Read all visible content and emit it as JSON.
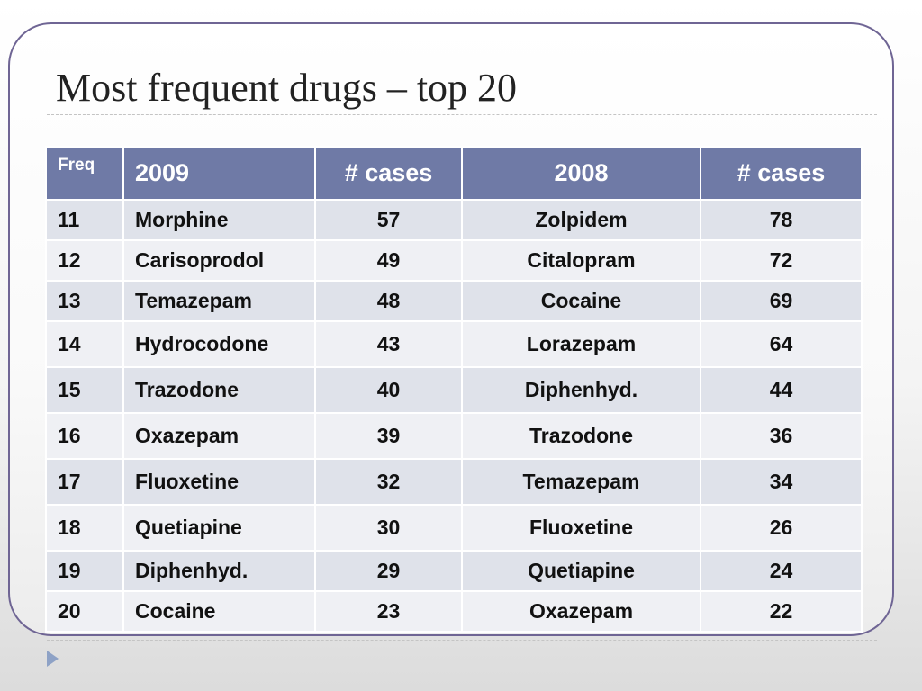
{
  "slide": {
    "title": "Most frequent drugs – top 20"
  },
  "table": {
    "headers": {
      "freq": "Freq",
      "year_2009": "2009",
      "cases_2009": "# cases",
      "year_2008": "2008",
      "cases_2008": "# cases"
    },
    "rows": [
      {
        "freq": "11",
        "drug_2009": "Morphine",
        "cases_2009": "57",
        "drug_2008": "Zolpidem",
        "cases_2008": "78"
      },
      {
        "freq": "12",
        "drug_2009": "Carisoprodol",
        "cases_2009": "49",
        "drug_2008": "Citalopram",
        "cases_2008": "72"
      },
      {
        "freq": "13",
        "drug_2009": "Temazepam",
        "cases_2009": "48",
        "drug_2008": "Cocaine",
        "cases_2008": "69"
      },
      {
        "freq": "14",
        "drug_2009": "Hydrocodone",
        "cases_2009": "43",
        "drug_2008": "Lorazepam",
        "cases_2008": "64"
      },
      {
        "freq": "15",
        "drug_2009": "Trazodone",
        "cases_2009": "40",
        "drug_2008": "Diphenhyd.",
        "cases_2008": "44"
      },
      {
        "freq": "16",
        "drug_2009": "Oxazepam",
        "cases_2009": "39",
        "drug_2008": "Trazodone",
        "cases_2008": "36"
      },
      {
        "freq": "17",
        "drug_2009": "Fluoxetine",
        "cases_2009": "32",
        "drug_2008": "Temazepam",
        "cases_2008": "34"
      },
      {
        "freq": "18",
        "drug_2009": "Quetiapine",
        "cases_2009": "30",
        "drug_2008": "Fluoxetine",
        "cases_2008": "26"
      },
      {
        "freq": "19",
        "drug_2009": "Diphenhyd.",
        "cases_2009": "29",
        "drug_2008": "Quetiapine",
        "cases_2008": "24"
      },
      {
        "freq": "20",
        "drug_2009": "Cocaine",
        "cases_2009": "23",
        "drug_2008": "Oxazepam",
        "cases_2008": "22"
      }
    ]
  },
  "colors": {
    "frame_border": "#6f6594",
    "header_bg": "#6f7aa6",
    "row_bg_odd": "#dfe2ea",
    "row_bg_even": "#eff0f4",
    "accent_arrow": "#8ea2c6"
  },
  "icons": {
    "nav": "arrow-right-icon"
  }
}
